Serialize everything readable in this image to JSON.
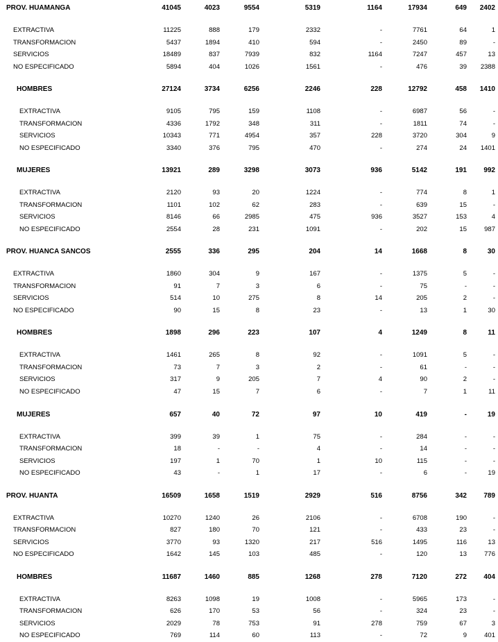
{
  "table": {
    "sections": [
      {
        "total": [
          "PROV. HUAMANGA",
          41045,
          4023,
          9554,
          5319,
          1164,
          17934,
          649,
          2402
        ],
        "rows": [
          [
            "EXTRACTIVA",
            11225,
            888,
            179,
            2332,
            "-",
            7761,
            64,
            1
          ],
          [
            "TRANSFORMACION",
            5437,
            1894,
            410,
            594,
            "-",
            2450,
            89,
            "-"
          ],
          [
            "SERVICIOS",
            18489,
            837,
            7939,
            832,
            1164,
            7247,
            457,
            13
          ],
          [
            "NO ESPECIFICADO",
            5894,
            404,
            1026,
            1561,
            "-",
            476,
            39,
            2388
          ]
        ],
        "groups": [
          {
            "total": [
              "HOMBRES",
              27124,
              3734,
              6256,
              2246,
              228,
              12792,
              458,
              1410
            ],
            "rows": [
              [
                "EXTRACTIVA",
                9105,
                795,
                159,
                1108,
                "-",
                6987,
                56,
                "-"
              ],
              [
                "TRANSFORMACION",
                4336,
                1792,
                348,
                311,
                "-",
                1811,
                74,
                "-"
              ],
              [
                "SERVICIOS",
                10343,
                771,
                4954,
                357,
                228,
                3720,
                304,
                9
              ],
              [
                "NO ESPECIFICADO",
                3340,
                376,
                795,
                470,
                "-",
                274,
                24,
                1401
              ]
            ]
          },
          {
            "total": [
              "MUJERES",
              13921,
              289,
              3298,
              3073,
              936,
              5142,
              191,
              992
            ],
            "rows": [
              [
                "EXTRACTIVA",
                2120,
                93,
                20,
                1224,
                "-",
                774,
                8,
                1
              ],
              [
                "TRANSFORMACION",
                1101,
                102,
                62,
                283,
                "-",
                639,
                15,
                "-"
              ],
              [
                "SERVICIOS",
                8146,
                66,
                2985,
                475,
                936,
                3527,
                153,
                4
              ],
              [
                "NO ESPECIFICADO",
                2554,
                28,
                231,
                1091,
                "-",
                202,
                15,
                987
              ]
            ]
          }
        ]
      },
      {
        "total": [
          "PROV. HUANCA SANCOS",
          2555,
          336,
          295,
          204,
          14,
          1668,
          8,
          30
        ],
        "rows": [
          [
            "EXTRACTIVA",
            1860,
            304,
            9,
            167,
            "-",
            1375,
            5,
            "-"
          ],
          [
            "TRANSFORMACION",
            91,
            7,
            3,
            6,
            "-",
            75,
            "-",
            "-"
          ],
          [
            "SERVICIOS",
            514,
            10,
            275,
            8,
            14,
            205,
            2,
            "-"
          ],
          [
            "NO ESPECIFICADO",
            90,
            15,
            8,
            23,
            "-",
            13,
            1,
            30
          ]
        ],
        "groups": [
          {
            "total": [
              "HOMBRES",
              1898,
              296,
              223,
              107,
              4,
              1249,
              8,
              11
            ],
            "rows": [
              [
                "EXTRACTIVA",
                1461,
                265,
                8,
                92,
                "-",
                1091,
                5,
                "-"
              ],
              [
                "TRANSFORMACION",
                73,
                7,
                3,
                2,
                "-",
                61,
                "-",
                "-"
              ],
              [
                "SERVICIOS",
                317,
                9,
                205,
                7,
                4,
                90,
                2,
                "-"
              ],
              [
                "NO ESPECIFICADO",
                47,
                15,
                7,
                6,
                "-",
                7,
                1,
                11
              ]
            ]
          },
          {
            "total": [
              "MUJERES",
              657,
              40,
              72,
              97,
              10,
              419,
              "-",
              19
            ],
            "rows": [
              [
                "EXTRACTIVA",
                399,
                39,
                1,
                75,
                "-",
                284,
                "-",
                "-"
              ],
              [
                "TRANSFORMACION",
                18,
                "-",
                "-",
                4,
                "-",
                14,
                "-",
                "-"
              ],
              [
                "SERVICIOS",
                197,
                1,
                70,
                1,
                10,
                115,
                "-",
                "-"
              ],
              [
                "NO ESPECIFICADO",
                43,
                "-",
                1,
                17,
                "-",
                6,
                "-",
                19
              ]
            ]
          }
        ]
      },
      {
        "total": [
          "PROV. HUANTA",
          16509,
          1658,
          1519,
          2929,
          516,
          8756,
          342,
          789
        ],
        "rows": [
          [
            "EXTRACTIVA",
            10270,
            1240,
            26,
            2106,
            "-",
            6708,
            190,
            "-"
          ],
          [
            "TRANSFORMACION",
            827,
            180,
            70,
            121,
            "-",
            433,
            23,
            "-"
          ],
          [
            "SERVICIOS",
            3770,
            93,
            1320,
            217,
            516,
            1495,
            116,
            13
          ],
          [
            "NO ESPECIFICADO",
            1642,
            145,
            103,
            485,
            "-",
            120,
            13,
            776
          ]
        ],
        "groups": [
          {
            "total": [
              "HOMBRES",
              11687,
              1460,
              885,
              1268,
              278,
              7120,
              272,
              404
            ],
            "rows": [
              [
                "EXTRACTIVA",
                8263,
                1098,
                19,
                1008,
                "-",
                5965,
                173,
                "-"
              ],
              [
                "TRANSFORMACION",
                626,
                170,
                53,
                56,
                "-",
                324,
                23,
                "-"
              ],
              [
                "SERVICIOS",
                2029,
                78,
                753,
                91,
                278,
                759,
                67,
                3
              ],
              [
                "NO ESPECIFICADO",
                769,
                114,
                60,
                113,
                "-",
                72,
                9,
                401
              ]
            ]
          }
        ]
      }
    ]
  }
}
